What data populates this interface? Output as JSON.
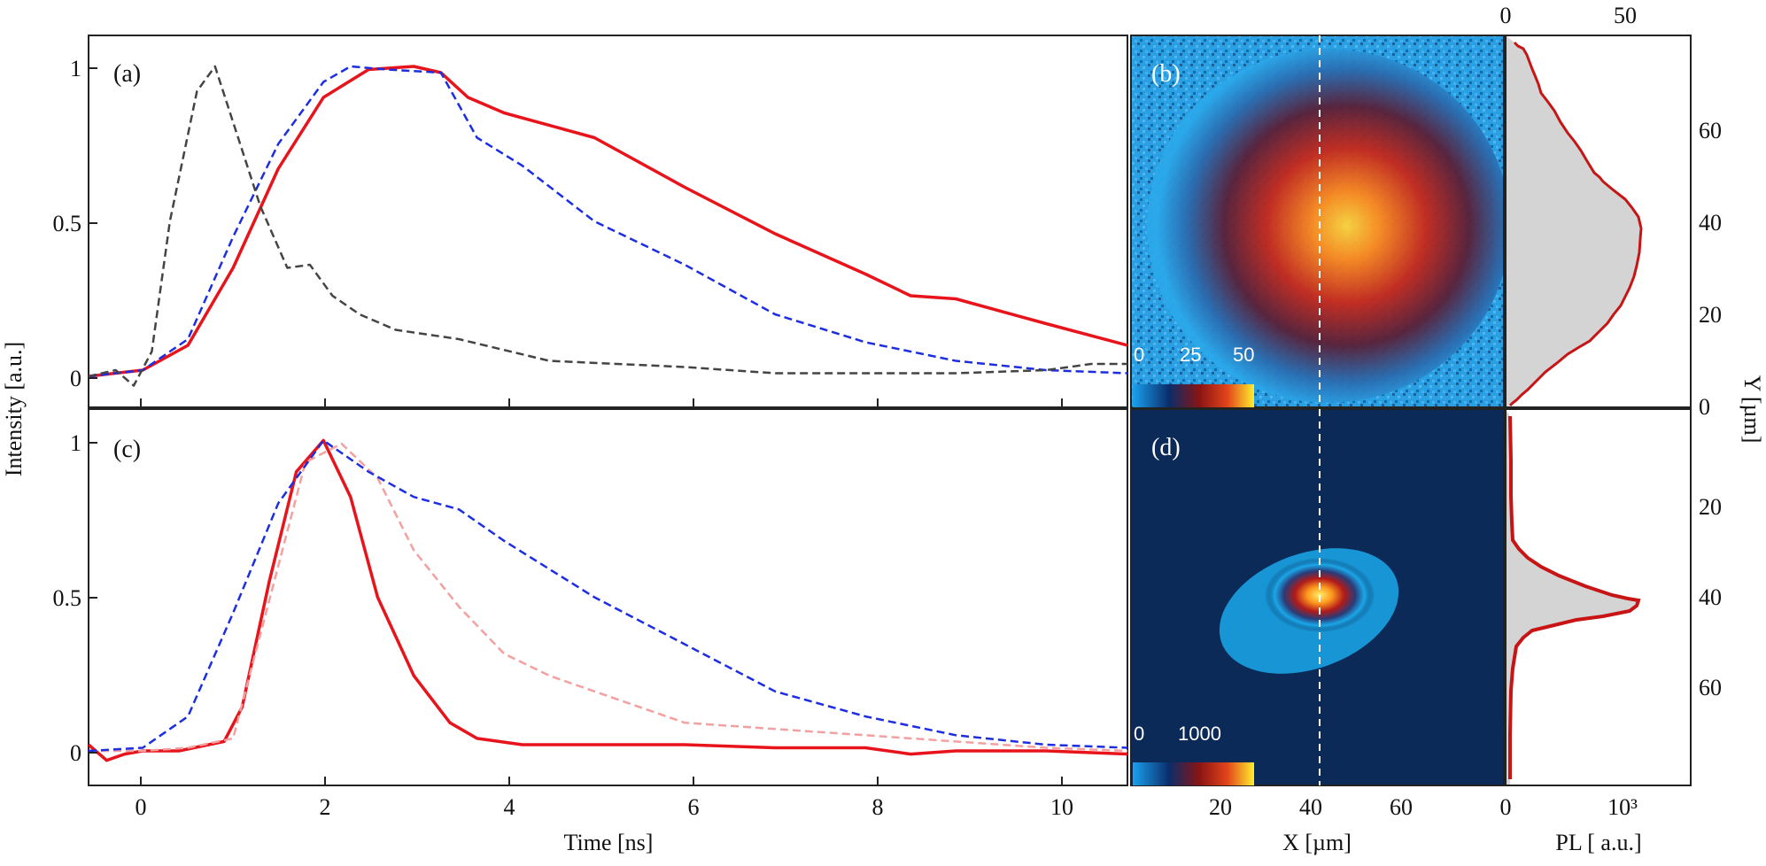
{
  "chart_data": [
    {
      "panel": "(a)",
      "type": "line",
      "xlabel": "Time [ns]",
      "ylabel": "Intensity [a.u.]",
      "xlim": [
        -0.6,
        10.9
      ],
      "ylim": [
        -0.1,
        1.1
      ],
      "yticks": [
        "0",
        "0.5",
        "1"
      ],
      "series": [
        {
          "name": "red solid",
          "color": "#e8141c",
          "dash": "solid",
          "x": [
            -0.6,
            0,
            0.5,
            1,
            1.5,
            2,
            2.5,
            3,
            3.3,
            3.6,
            4,
            5,
            6,
            7,
            8,
            8.5,
            9,
            10,
            10.9
          ],
          "y": [
            0,
            0.02,
            0.1,
            0.35,
            0.67,
            0.9,
            0.99,
            1.0,
            0.98,
            0.9,
            0.85,
            0.77,
            0.61,
            0.46,
            0.33,
            0.26,
            0.25,
            0.17,
            0.1
          ]
        },
        {
          "name": "blue dashed",
          "color": "#1c2ee0",
          "dash": "dashed",
          "x": [
            -0.6,
            0,
            0.5,
            1,
            1.5,
            2,
            2.3,
            2.7,
            3.3,
            3.7,
            4.2,
            5,
            6,
            7,
            8,
            9,
            10,
            10.9
          ],
          "y": [
            0,
            0.02,
            0.12,
            0.45,
            0.75,
            0.95,
            1.0,
            0.99,
            0.98,
            0.77,
            0.68,
            0.5,
            0.36,
            0.2,
            0.11,
            0.05,
            0.02,
            0.01
          ]
        },
        {
          "name": "gray dashed",
          "color": "#444444",
          "dash": "dashed",
          "x": [
            -0.6,
            -0.3,
            -0.1,
            0.1,
            0.3,
            0.6,
            0.8,
            1,
            1.3,
            1.6,
            1.85,
            2.1,
            2.4,
            2.8,
            3.5,
            4.5,
            6,
            7,
            8,
            9,
            10,
            10.5,
            10.9
          ],
          "y": [
            0,
            0.02,
            -0.03,
            0.08,
            0.5,
            0.92,
            1.0,
            0.82,
            0.55,
            0.35,
            0.36,
            0.26,
            0.2,
            0.15,
            0.12,
            0.05,
            0.03,
            0.01,
            0.01,
            0.01,
            0.02,
            0.04,
            0.04
          ]
        }
      ]
    },
    {
      "panel": "(c)",
      "type": "line",
      "xlabel": "Time [ns]",
      "ylabel": "Intensity [a.u.]",
      "xlim": [
        -0.6,
        10.9
      ],
      "ylim": [
        -0.1,
        1.1
      ],
      "xticks": [
        "0",
        "2",
        "4",
        "6",
        "8",
        "10"
      ],
      "yticks": [
        "0",
        "0.5",
        "1"
      ],
      "series": [
        {
          "name": "red solid",
          "color": "#e8141c",
          "dash": "solid",
          "x": [
            -0.6,
            -0.4,
            -0.2,
            0,
            0.4,
            0.9,
            1.1,
            1.4,
            1.7,
            2,
            2.3,
            2.6,
            3,
            3.4,
            3.7,
            4.2,
            5,
            6,
            7,
            8,
            8.5,
            9,
            10,
            10.9
          ],
          "y": [
            0.03,
            -0.02,
            0.0,
            0.01,
            0.01,
            0.04,
            0.15,
            0.55,
            0.9,
            1.0,
            0.82,
            0.5,
            0.25,
            0.1,
            0.05,
            0.03,
            0.03,
            0.03,
            0.02,
            0.02,
            0.0,
            0.01,
            0.01,
            0.0
          ]
        },
        {
          "name": "light red dashed",
          "color": "#f4a0a0",
          "dash": "dashed",
          "x": [
            -0.6,
            0,
            0.5,
            1,
            1.5,
            1.8,
            2.2,
            2.6,
            3,
            3.5,
            4,
            4.5,
            5,
            6,
            7,
            8,
            9,
            10,
            10.9
          ],
          "y": [
            0.01,
            0.01,
            0.02,
            0.05,
            0.6,
            0.93,
            0.99,
            0.88,
            0.65,
            0.47,
            0.32,
            0.25,
            0.2,
            0.1,
            0.08,
            0.06,
            0.04,
            0.02,
            0.01
          ]
        },
        {
          "name": "blue dashed",
          "color": "#1c2ee0",
          "dash": "dashed",
          "x": [
            -0.6,
            0,
            0.5,
            1,
            1.5,
            2,
            2.5,
            3,
            3.5,
            4,
            5,
            6,
            7,
            8,
            9,
            10,
            10.9
          ],
          "y": [
            0.01,
            0.02,
            0.12,
            0.45,
            0.8,
            1.0,
            0.9,
            0.82,
            0.78,
            0.68,
            0.5,
            0.35,
            0.2,
            0.12,
            0.06,
            0.03,
            0.02
          ]
        }
      ]
    },
    {
      "panel": "(b)",
      "type": "heatmap",
      "colorbar_ticks": [
        "0",
        "25",
        "50"
      ],
      "profile_top_ticks": [
        "0",
        "50"
      ],
      "y_axis_label": "Y [µm]",
      "y_ticks": [
        "0",
        "20",
        "40",
        "60"
      ]
    },
    {
      "panel": "(d)",
      "type": "heatmap",
      "colorbar_ticks": [
        "0",
        "1000"
      ],
      "x_axis_label": "X [µm]",
      "x_ticks": [
        "20",
        "40",
        "60"
      ],
      "profile_x_label": "PL [ a.u.]",
      "profile_x_ticks": [
        "0",
        "10³"
      ],
      "y_ticks": [
        "20",
        "40",
        "60"
      ]
    }
  ]
}
